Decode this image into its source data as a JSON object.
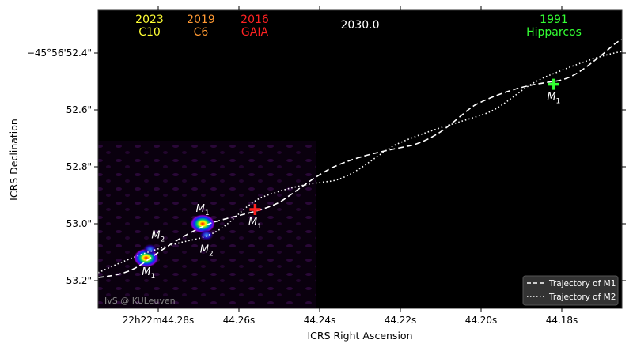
{
  "chart_data": {
    "type": "scatter",
    "title": "",
    "xlabel": "ICRS Right Ascension",
    "ylabel": "ICRS Declination",
    "x_ticks": [
      "22h22m44.28s",
      "44.26s",
      "44.24s",
      "44.22s",
      "44.20s",
      "44.18s"
    ],
    "y_ticks": [
      "−45°56'52.4\"",
      "52.6\"",
      "52.8\"",
      "53.0\"",
      "53.2\""
    ],
    "epochs": [
      {
        "year": "2023",
        "name": "C10",
        "color": "#ffff33"
      },
      {
        "year": "2019",
        "name": "C6",
        "color": "#ff9933"
      },
      {
        "year": "2016",
        "name": "GAIA",
        "color": "#ff2222"
      },
      {
        "year": "2030.0",
        "name": "",
        "color": "#ffffff"
      },
      {
        "year": "1991",
        "name": "Hipparcos",
        "color": "#33ff33"
      }
    ],
    "markers": [
      {
        "label": "M",
        "sub": "1",
        "epoch": "1991",
        "ra_s": 44.182,
        "dec_s": 52.51
      },
      {
        "label": "M",
        "sub": "1",
        "epoch": "2016",
        "ra_s": 44.256,
        "dec_s": 52.95
      },
      {
        "label": "M",
        "sub": "1",
        "epoch": "2019",
        "ra_s": 44.269,
        "dec_s": 53.0
      },
      {
        "label": "M",
        "sub": "2",
        "epoch": "2019",
        "ra_s": 44.268,
        "dec_s": 53.04
      },
      {
        "label": "M",
        "sub": "1",
        "epoch": "2023",
        "ra_s": 44.283,
        "dec_s": 53.12
      },
      {
        "label": "M",
        "sub": "2",
        "epoch": "2023",
        "ra_s": 44.282,
        "dec_s": 53.09
      }
    ],
    "legend": {
      "position": "bottom-right",
      "entries": [
        "Trajectory of M1",
        "Trajectory of M2"
      ]
    },
    "credit": "IvS @ KULeuven"
  }
}
